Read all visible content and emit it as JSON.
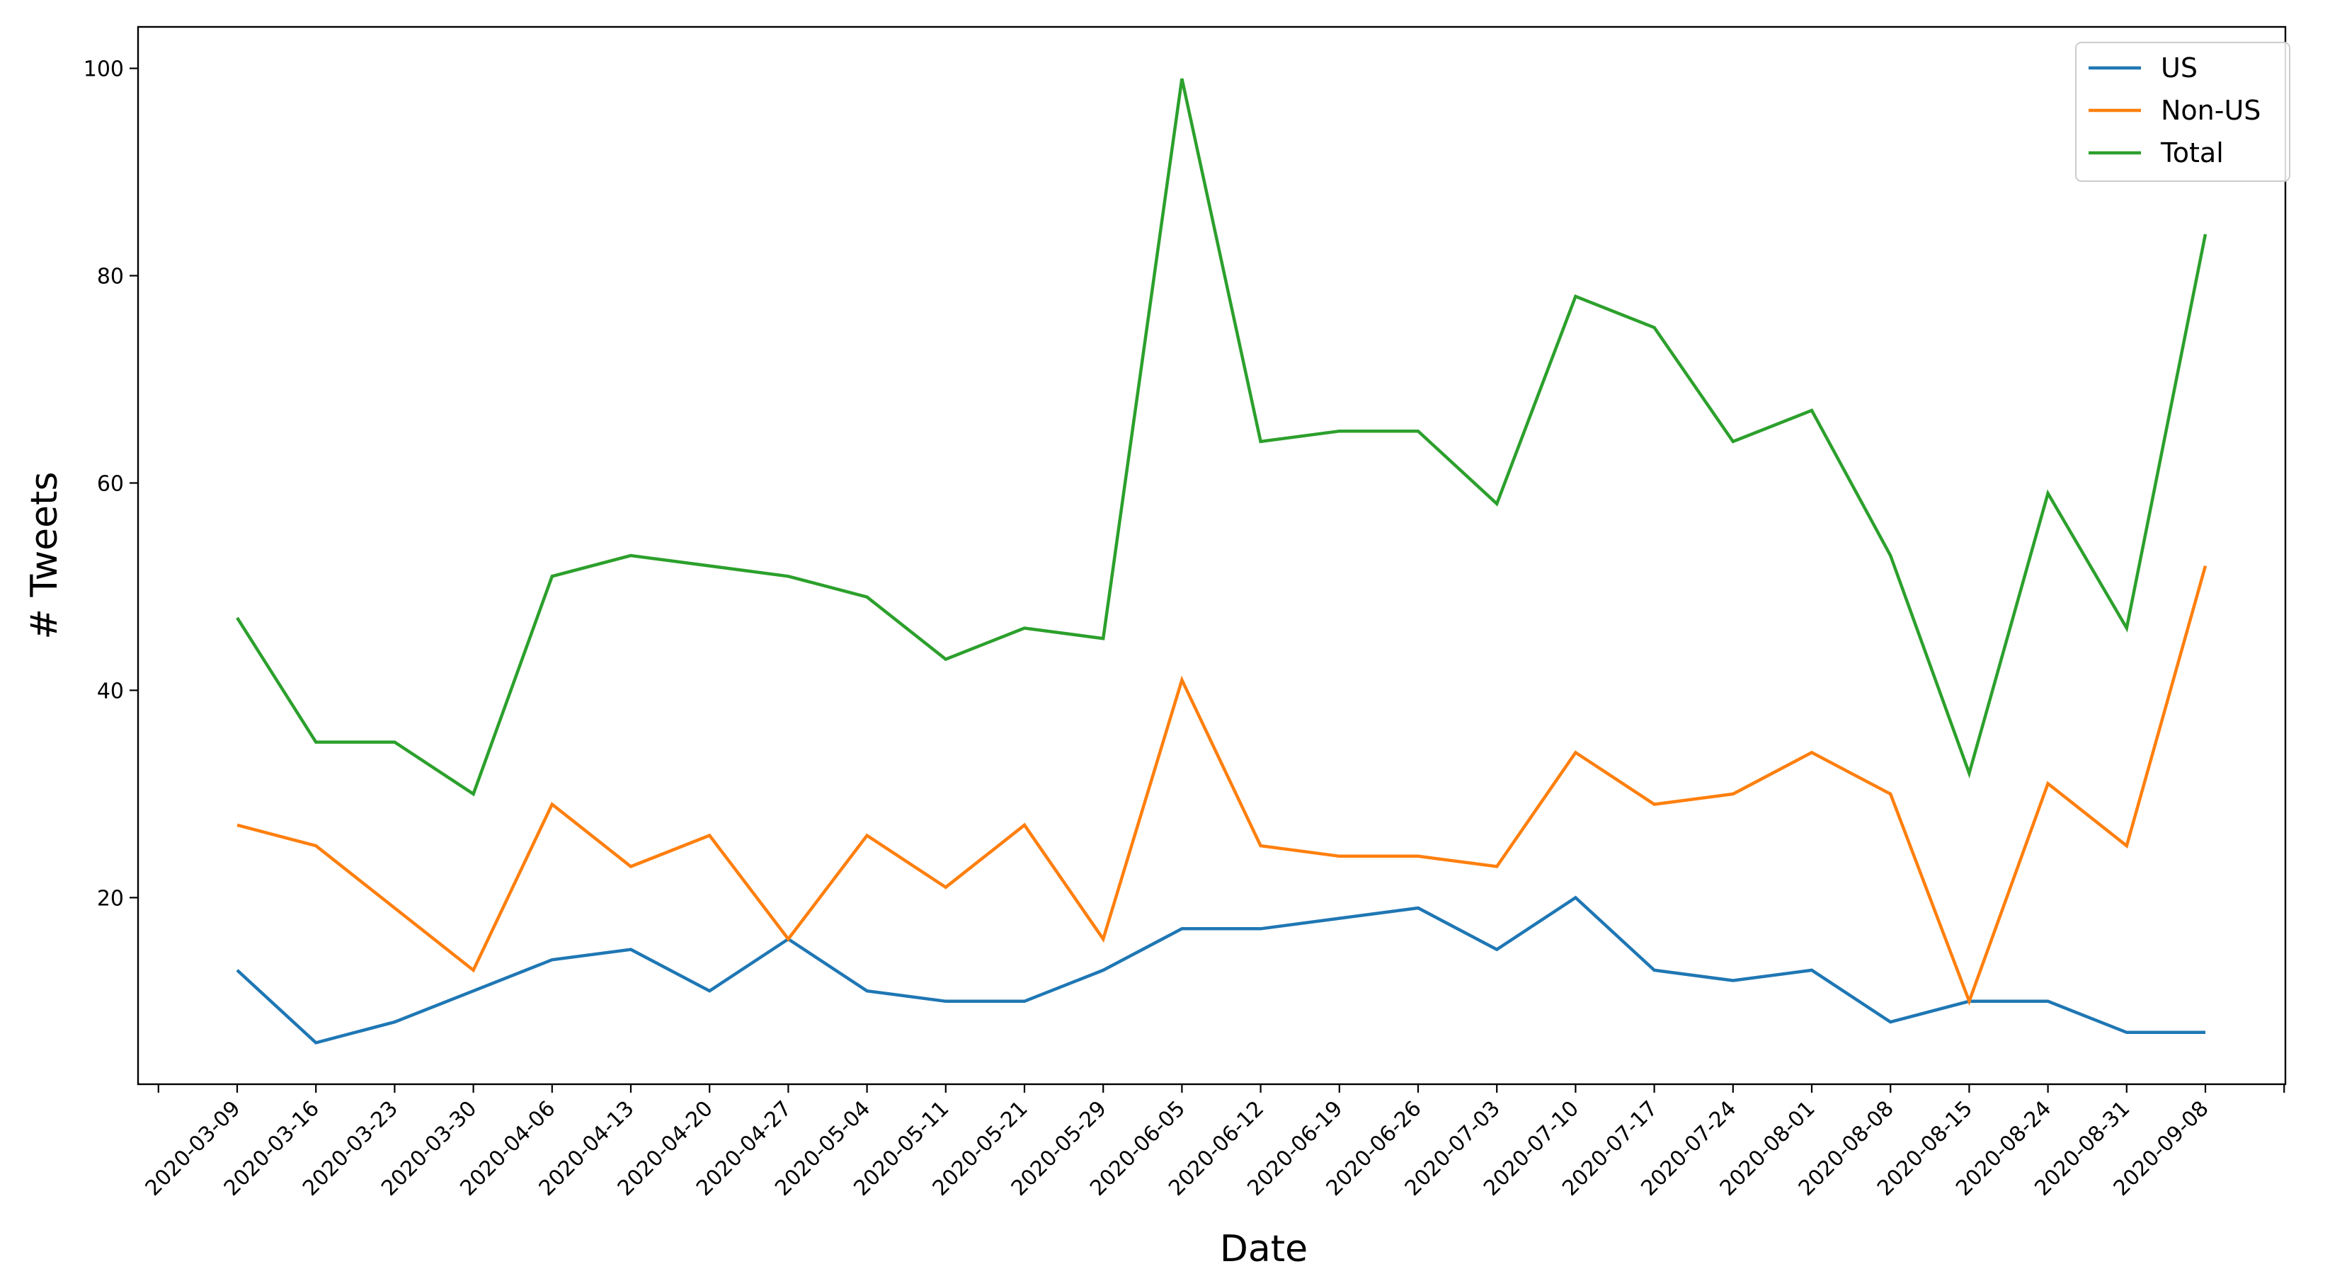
{
  "chart_data": {
    "type": "line",
    "title": "",
    "xlabel": "Date",
    "ylabel": "# Tweets",
    "ylim": [
      2,
      104
    ],
    "yticks": [
      20,
      40,
      60,
      80,
      100
    ],
    "grid": false,
    "legend_position": "top-right",
    "categories": [
      "2020-03-09",
      "2020-03-16",
      "2020-03-23",
      "2020-03-30",
      "2020-04-06",
      "2020-04-13",
      "2020-04-20",
      "2020-04-27",
      "2020-05-04",
      "2020-05-11",
      "2020-05-21",
      "2020-05-29",
      "2020-06-05",
      "2020-06-12",
      "2020-06-19",
      "2020-06-26",
      "2020-07-03",
      "2020-07-10",
      "2020-07-17",
      "2020-07-24",
      "2020-08-01",
      "2020-08-08",
      "2020-08-15",
      "2020-08-24",
      "2020-08-31",
      "2020-09-08"
    ],
    "series": [
      {
        "name": "US",
        "color": "#1f77b4",
        "values": [
          13,
          6,
          8,
          11,
          14,
          15,
          11,
          16,
          11,
          10,
          10,
          13,
          17,
          17,
          18,
          19,
          15,
          20,
          13,
          12,
          13,
          8,
          10,
          10,
          7,
          7
        ]
      },
      {
        "name": "Non-US",
        "color": "#ff7f0e",
        "values": [
          27,
          25,
          19,
          13,
          29,
          23,
          26,
          16,
          26,
          21,
          27,
          16,
          41,
          25,
          24,
          24,
          23,
          34,
          29,
          30,
          34,
          30,
          10,
          31,
          25,
          52
        ]
      },
      {
        "name": "Total",
        "color": "#2ca02c",
        "values": [
          47,
          35,
          35,
          30,
          51,
          53,
          52,
          51,
          49,
          43,
          46,
          45,
          99,
          64,
          65,
          65,
          58,
          78,
          75,
          64,
          67,
          53,
          32,
          59,
          46,
          84
        ]
      }
    ]
  }
}
